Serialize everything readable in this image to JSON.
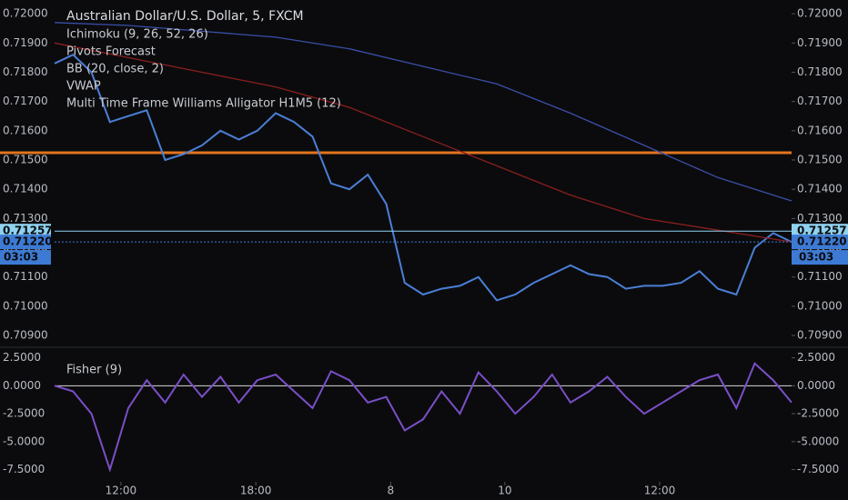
{
  "chart_data": [
    {
      "type": "line",
      "title": "Australian Dollar/U.S. Dollar, 5, FXCM",
      "legend": [
        "Ichimoku (9, 26, 52, 26)",
        "Pivots Forecast",
        "BB (20, close, 2)",
        "VWAP",
        "Multi Time Frame Williams Alligator H1M5 (12)"
      ],
      "x": [
        0,
        2.5,
        5,
        7.5,
        10,
        12.5,
        15,
        17.5,
        20,
        22.5,
        25,
        27.5,
        30,
        32.5,
        35,
        37.5,
        40,
        42.5,
        45,
        47.5,
        50,
        52.5,
        55,
        57.5,
        60,
        62.5,
        65,
        67.5,
        70,
        72.5,
        75,
        77.5,
        80,
        82.5,
        85,
        87.5,
        90,
        92.5,
        95,
        97.5,
        100
      ],
      "xlim": [
        0,
        100
      ],
      "ylim": [
        0.70866,
        0.72047
      ],
      "yticks": [
        {
          "value": 0.72,
          "label": "0.72000"
        },
        {
          "value": 0.719,
          "label": "0.71900"
        },
        {
          "value": 0.718,
          "label": "0.71800"
        },
        {
          "value": 0.717,
          "label": "0.71700"
        },
        {
          "value": 0.716,
          "label": "0.71600"
        },
        {
          "value": 0.715,
          "label": "0.71500"
        },
        {
          "value": 0.714,
          "label": "0.71400"
        },
        {
          "value": 0.713,
          "label": "0.71300"
        },
        {
          "value": 0.712,
          "label": "0.71200"
        },
        {
          "value": 0.711,
          "label": "0.71100"
        },
        {
          "value": 0.71,
          "label": "0.71000"
        },
        {
          "value": 0.709,
          "label": "0.70900"
        }
      ],
      "series": [
        {
          "color": "#4a7fd6",
          "values": [
            0.7183,
            0.7186,
            0.718,
            0.7163,
            0.7165,
            0.7167,
            0.715,
            0.7152,
            0.7155,
            0.716,
            0.7157,
            0.716,
            0.7166,
            0.7163,
            0.7158,
            0.7142,
            0.714,
            0.7145,
            0.7135,
            0.7108,
            0.7104,
            0.7106,
            0.7107,
            0.711,
            0.7102,
            0.7104,
            0.7108,
            0.7111,
            0.7114,
            0.7111,
            0.711,
            0.7106,
            0.7107,
            0.7107,
            0.7108,
            0.7112,
            0.7106,
            0.7104,
            0.712,
            0.7125,
            0.7122
          ]
        },
        {
          "color": "#3a4fa8",
          "x": [
            0,
            10,
            20,
            30,
            40,
            50,
            60,
            70,
            80,
            90,
            100
          ],
          "values": [
            0.7197,
            0.7196,
            0.7194,
            0.7192,
            0.7188,
            0.7182,
            0.7176,
            0.7166,
            0.7155,
            0.7144,
            0.7136
          ]
        },
        {
          "color": "#8b1e1e",
          "x": [
            0,
            10,
            20,
            30,
            40,
            50,
            60,
            70,
            80,
            90,
            100
          ],
          "values": [
            0.719,
            0.7185,
            0.718,
            0.7175,
            0.7168,
            0.7158,
            0.7148,
            0.7138,
            0.713,
            0.7126,
            0.7122
          ]
        }
      ],
      "levels": [
        {
          "value": 0.71525,
          "color": "#e0741f"
        }
      ],
      "price_labels": [
        {
          "value": 0.71257,
          "label": "0.71257",
          "color": "#8fd3f0"
        },
        {
          "value": 0.7122,
          "label": "0.71220",
          "color": "#3d7ad4"
        }
      ],
      "countdown": "03:03"
    },
    {
      "type": "line",
      "title": "Fisher (9)",
      "x": [
        0,
        2.5,
        5,
        7.5,
        10,
        12.5,
        15,
        17.5,
        20,
        22.5,
        25,
        27.5,
        30,
        32.5,
        35,
        37.5,
        40,
        42.5,
        45,
        47.5,
        50,
        52.5,
        55,
        57.5,
        60,
        62.5,
        65,
        67.5,
        70,
        72.5,
        75,
        77.5,
        80,
        82.5,
        85,
        87.5,
        90,
        92.5,
        95,
        97.5,
        100
      ],
      "xlim": [
        0,
        100
      ],
      "xticks": [
        {
          "value": 9,
          "label": "12:00"
        },
        {
          "value": 27.3,
          "label": "18:00"
        },
        {
          "value": 45.6,
          "label": "8"
        },
        {
          "value": 61.1,
          "label": "10"
        },
        {
          "value": 82.1,
          "label": "12:00"
        }
      ],
      "ylim": [
        -9,
        3.2
      ],
      "yticks": [
        {
          "value": 2.5,
          "label": "2.5000"
        },
        {
          "value": 0,
          "label": "0.0000"
        },
        {
          "value": -2.5,
          "label": "-2.5000"
        },
        {
          "value": -5,
          "label": "-5.0000"
        },
        {
          "value": -7.5,
          "label": "-7.5000"
        }
      ],
      "hlines": [
        0
      ],
      "series": [
        {
          "color": "#7a4fc8",
          "values": [
            0,
            -0.5,
            -2.5,
            -7.5,
            -2,
            0.5,
            -1.5,
            1,
            -1,
            0.8,
            -1.5,
            0.5,
            1,
            -0.5,
            -2,
            1.3,
            0.5,
            -1.5,
            -1,
            -4,
            -3,
            -0.5,
            -2.5,
            1.2,
            -0.5,
            -2.5,
            -1,
            1,
            -1.5,
            -0.5,
            0.8,
            -1,
            -2.5,
            -1.5,
            -0.5,
            0.5,
            1,
            -2,
            2,
            0.5,
            -1.5
          ]
        }
      ]
    }
  ]
}
